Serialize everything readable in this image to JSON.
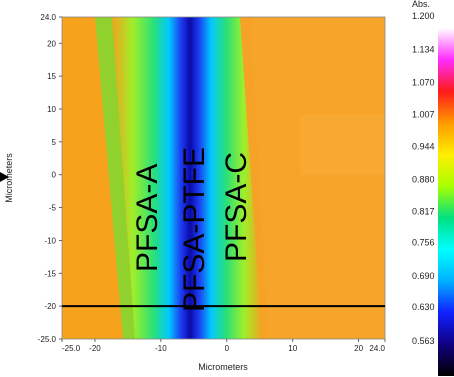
{
  "chart_data": {
    "type": "heatmap",
    "title": "",
    "xlabel": "Micrometers",
    "ylabel": "Micrometers",
    "xlim": [
      -25.0,
      24.0
    ],
    "ylim": [
      -25.0,
      24.0
    ],
    "x_ticks": [
      "-25.0",
      "-20",
      "-10",
      "0",
      "10",
      "20",
      "24.0"
    ],
    "x_tick_values": [
      -25,
      -20,
      -10,
      0,
      10,
      20,
      24
    ],
    "y_ticks": [
      "24.0",
      "20",
      "15",
      "10",
      "5",
      "0",
      "-5",
      "-10",
      "-15",
      "-20",
      "-25.0"
    ],
    "y_tick_values": [
      24,
      20,
      15,
      10,
      5,
      0,
      -5,
      -10,
      -15,
      -20,
      -25
    ],
    "colorbar": {
      "title": "Abs.",
      "ticks": [
        "1.200",
        "1.134",
        "1.070",
        "1.007",
        "0.944",
        "0.880",
        "0.817",
        "0.756",
        "0.690",
        "0.630",
        "0.563"
      ],
      "tick_values": [
        1.2,
        1.134,
        1.07,
        1.007,
        0.944,
        0.88,
        0.817,
        0.756,
        0.69,
        0.63,
        0.563
      ],
      "colormap_stops": [
        "#ffffff",
        "#ff2cff",
        "#ff1a1a",
        "#ff9a00",
        "#ffee00",
        "#a8ff00",
        "#00e080",
        "#00ffff",
        "#00b0ff",
        "#1020ff",
        "#100080",
        "#000000"
      ]
    },
    "region_labels": [
      "PFSA-A",
      "PFSA-PTFE",
      "PFSA-C"
    ],
    "bands": [
      {
        "region": "PFSA-A",
        "x_from_top": [
          -25.0,
          -20.0
        ],
        "x_from_bottom": [
          -25.0,
          -16.0
        ],
        "value": 0.88
      },
      {
        "region": "PFSA-PTFE",
        "center_top": -8.0,
        "center_bottom": -7.0,
        "value_edge": 0.78,
        "value_core": 0.6
      },
      {
        "region": "PFSA-C",
        "x_from": 3.0,
        "x_to": 24.0,
        "value": 0.88
      }
    ],
    "line_scan_y": -20.0,
    "side_marker": "arrow pointing right toward the y-axis"
  }
}
